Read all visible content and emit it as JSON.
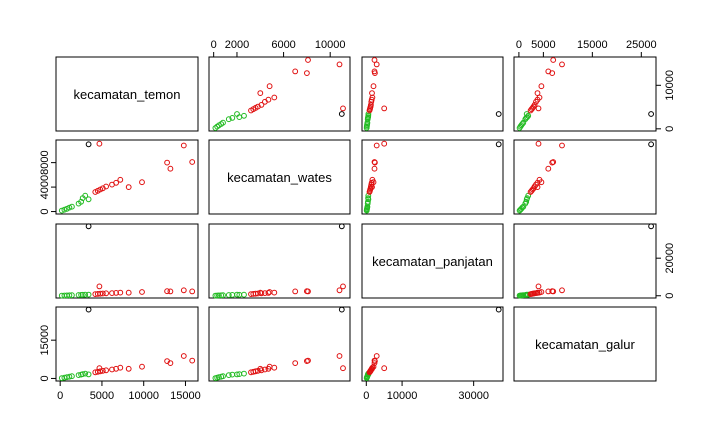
{
  "chart_data": {
    "type": "scatter",
    "subtype": "pairs-matrix",
    "variables": [
      "kecamatan_temon",
      "kecamatan_wates",
      "kecamatan_panjatan",
      "kecamatan_galur"
    ],
    "colors": {
      "green": "#22bb22",
      "red": "#e01010",
      "black": "#000000"
    },
    "axis_ticks": {
      "kecamatan_temon": [
        0,
        2000,
        6000,
        10000
      ],
      "kecamatan_wates": [
        0,
        4000,
        8000
      ],
      "kecamatan_panjatan": [
        0,
        10000,
        30000
      ],
      "kecamatan_galur": [
        0,
        5000,
        15000,
        25000
      ]
    },
    "tick_labels": {
      "top": [
        {
          "var": "kecamatan_wates",
          "values": [
            "0",
            "2000",
            "6000",
            "10000"
          ]
        },
        {
          "var": "kecamatan_galur",
          "values": [
            "0",
            "5000",
            "15000",
            "25000"
          ]
        }
      ],
      "right": [
        {
          "var": "kecamatan_temon",
          "values": [
            "0",
            "10000"
          ]
        },
        {
          "var": "kecamatan_panjatan",
          "values": [
            "0",
            "20000"
          ]
        }
      ],
      "left": [
        {
          "var": "kecamatan_wates",
          "values": [
            "0",
            "4000",
            "8000"
          ]
        },
        {
          "var": "kecamatan_galur",
          "values": [
            "0",
            "15000"
          ]
        }
      ],
      "bottom": [
        {
          "var": "kecamatan_temon",
          "values": [
            "0",
            "5000",
            "10000",
            "15000"
          ]
        },
        {
          "var": "kecamatan_panjatan",
          "values": [
            "0",
            "10000",
            "30000"
          ]
        }
      ]
    },
    "axis_ranges": {
      "kecamatan_temon": [
        -500,
        16500
      ],
      "kecamatan_wates": [
        -400,
        11700
      ],
      "kecamatan_panjatan": [
        -1200,
        38200
      ],
      "kecamatan_galur": [
        -1000,
        28000
      ]
    },
    "points": [
      {
        "temon": 200,
        "wates": 150,
        "panjatan": 100,
        "galur": 150,
        "group": "green"
      },
      {
        "temon": 500,
        "wates": 300,
        "panjatan": 150,
        "galur": 300,
        "group": "green"
      },
      {
        "temon": 800,
        "wates": 450,
        "panjatan": 200,
        "galur": 500,
        "group": "green"
      },
      {
        "temon": 1100,
        "wates": 650,
        "panjatan": 250,
        "galur": 700,
        "group": "green"
      },
      {
        "temon": 1400,
        "wates": 800,
        "panjatan": 300,
        "galur": 900,
        "group": "green"
      },
      {
        "temon": 2200,
        "wates": 1300,
        "panjatan": 400,
        "galur": 1300,
        "group": "green"
      },
      {
        "temon": 2500,
        "wates": 1600,
        "panjatan": 450,
        "galur": 1500,
        "group": "green"
      },
      {
        "temon": 2700,
        "wates": 2200,
        "panjatan": 500,
        "galur": 1700,
        "group": "green"
      },
      {
        "temon": 3000,
        "wates": 2600,
        "panjatan": 550,
        "galur": 1900,
        "group": "green"
      },
      {
        "temon": 3400,
        "wates": 2000,
        "panjatan": 600,
        "galur": 1600,
        "group": "green"
      },
      {
        "temon": 4200,
        "wates": 3200,
        "panjatan": 900,
        "galur": 2400,
        "group": "red"
      },
      {
        "temon": 4500,
        "wates": 3400,
        "panjatan": 1000,
        "galur": 2600,
        "group": "red"
      },
      {
        "temon": 4800,
        "wates": 3600,
        "panjatan": 1100,
        "galur": 2800,
        "group": "red"
      },
      {
        "temon": 5100,
        "wates": 3800,
        "panjatan": 1200,
        "galur": 3000,
        "group": "red"
      },
      {
        "temon": 5500,
        "wates": 4100,
        "panjatan": 1300,
        "galur": 3200,
        "group": "red"
      },
      {
        "temon": 6200,
        "wates": 4400,
        "panjatan": 1400,
        "galur": 3500,
        "group": "red"
      },
      {
        "temon": 6700,
        "wates": 4700,
        "panjatan": 1500,
        "galur": 3800,
        "group": "red"
      },
      {
        "temon": 7200,
        "wates": 5200,
        "panjatan": 1700,
        "galur": 4200,
        "group": "red"
      },
      {
        "temon": 8200,
        "wates": 4000,
        "panjatan": 1600,
        "galur": 3800,
        "group": "red"
      },
      {
        "temon": 9800,
        "wates": 4800,
        "panjatan": 2000,
        "galur": 4600,
        "group": "red"
      },
      {
        "temon": 12800,
        "wates": 8000,
        "panjatan": 2400,
        "galur": 6800,
        "group": "red"
      },
      {
        "temon": 13200,
        "wates": 7000,
        "panjatan": 2300,
        "galur": 6000,
        "group": "red"
      },
      {
        "temon": 14800,
        "wates": 10800,
        "panjatan": 2900,
        "galur": 8800,
        "group": "red"
      },
      {
        "temon": 15800,
        "wates": 8100,
        "panjatan": 2300,
        "galur": 7000,
        "group": "red"
      },
      {
        "temon": 3400,
        "wates": 11000,
        "panjatan": 37000,
        "galur": 27000,
        "group": "black"
      },
      {
        "temon": 4700,
        "wates": 11100,
        "panjatan": 5000,
        "galur": 4000,
        "group": "red"
      }
    ]
  }
}
